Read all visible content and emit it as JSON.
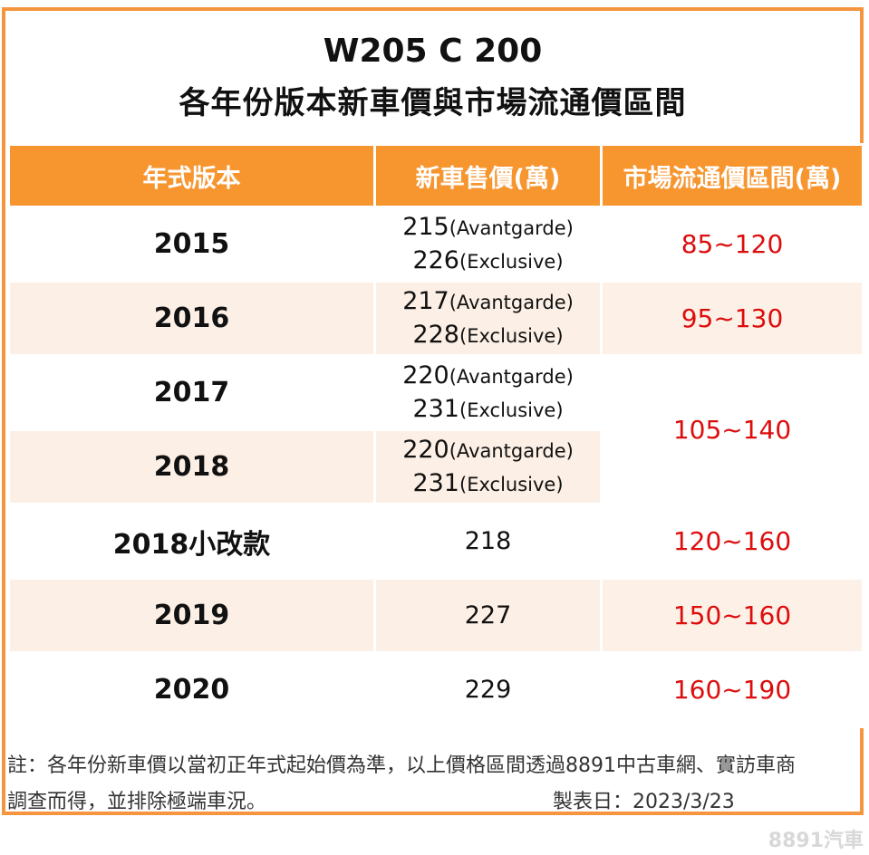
{
  "title": {
    "line1": "W205 C 200",
    "line2": "各年份版本新車價與市場流通價區間"
  },
  "headers": [
    "年式版本",
    "新車售價(萬)",
    "市場流通價區間(萬)"
  ],
  "rows": [
    {
      "year": "2015",
      "price1": "215",
      "trim1": "(Avantgarde)",
      "price2": "226",
      "trim2": "(Exclusive)",
      "range": "85~120"
    },
    {
      "year": "2016",
      "price1": "217",
      "trim1": "(Avantgarde)",
      "price2": "228",
      "trim2": "(Exclusive)",
      "range": "95~130"
    },
    {
      "year": "2017",
      "price1": "220",
      "trim1": "(Avantgarde)",
      "price2": "231",
      "trim2": "(Exclusive)",
      "range": "105~140"
    },
    {
      "year": "2018",
      "price1": "220",
      "trim1": "(Avantgarde)",
      "price2": "231",
      "trim2": "(Exclusive)"
    },
    {
      "year": "2018小改款",
      "price": "218",
      "range": "120~160"
    },
    {
      "year": "2019",
      "price": "227",
      "range": "150~160"
    },
    {
      "year": "2020",
      "price": "229",
      "range": "160~190"
    }
  ],
  "note": {
    "line1": "註：各年份新車價以當初正年式起始價為準，以上價格區間透過8891中古車網、實訪車商",
    "line2": "調查而得，並排除極端車況。",
    "date": "製表日：2023/3/23"
  },
  "watermark": "8891汽車",
  "colors": {
    "accent": "#f7952f",
    "price_range": "#dd0d0d",
    "stripe": "#fcefe5"
  }
}
